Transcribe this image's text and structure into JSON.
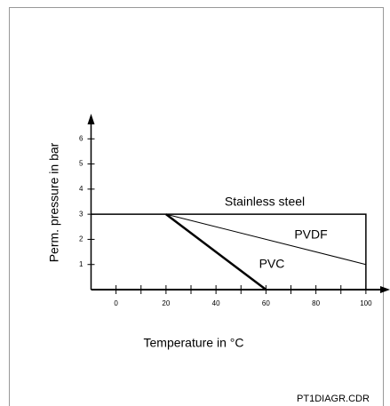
{
  "chart_data": {
    "type": "line",
    "x_label": "Temperature in °C",
    "y_label": "Perm. pressure in bar",
    "footer": "PT1DIAGR.CDR",
    "series": [
      {
        "name": "Stainless steel",
        "color": "#000000",
        "x": [
          -10,
          100,
          100
        ],
        "values": [
          3,
          3,
          0
        ]
      },
      {
        "name": "PVDF",
        "color": "#000000",
        "x": [
          20,
          100
        ],
        "values": [
          3,
          1
        ]
      },
      {
        "name": "PVC",
        "color": "#000000",
        "x": [
          20,
          60
        ],
        "values": [
          3,
          0
        ]
      }
    ],
    "xlim": [
      -10,
      110
    ],
    "ylim": [
      0,
      7
    ],
    "xticks": [
      0,
      20,
      40,
      60,
      80,
      100
    ],
    "xticks_minor": [
      10,
      30,
      50,
      70,
      90
    ],
    "yticks": [
      1,
      2,
      3,
      4,
      5,
      6
    ]
  }
}
